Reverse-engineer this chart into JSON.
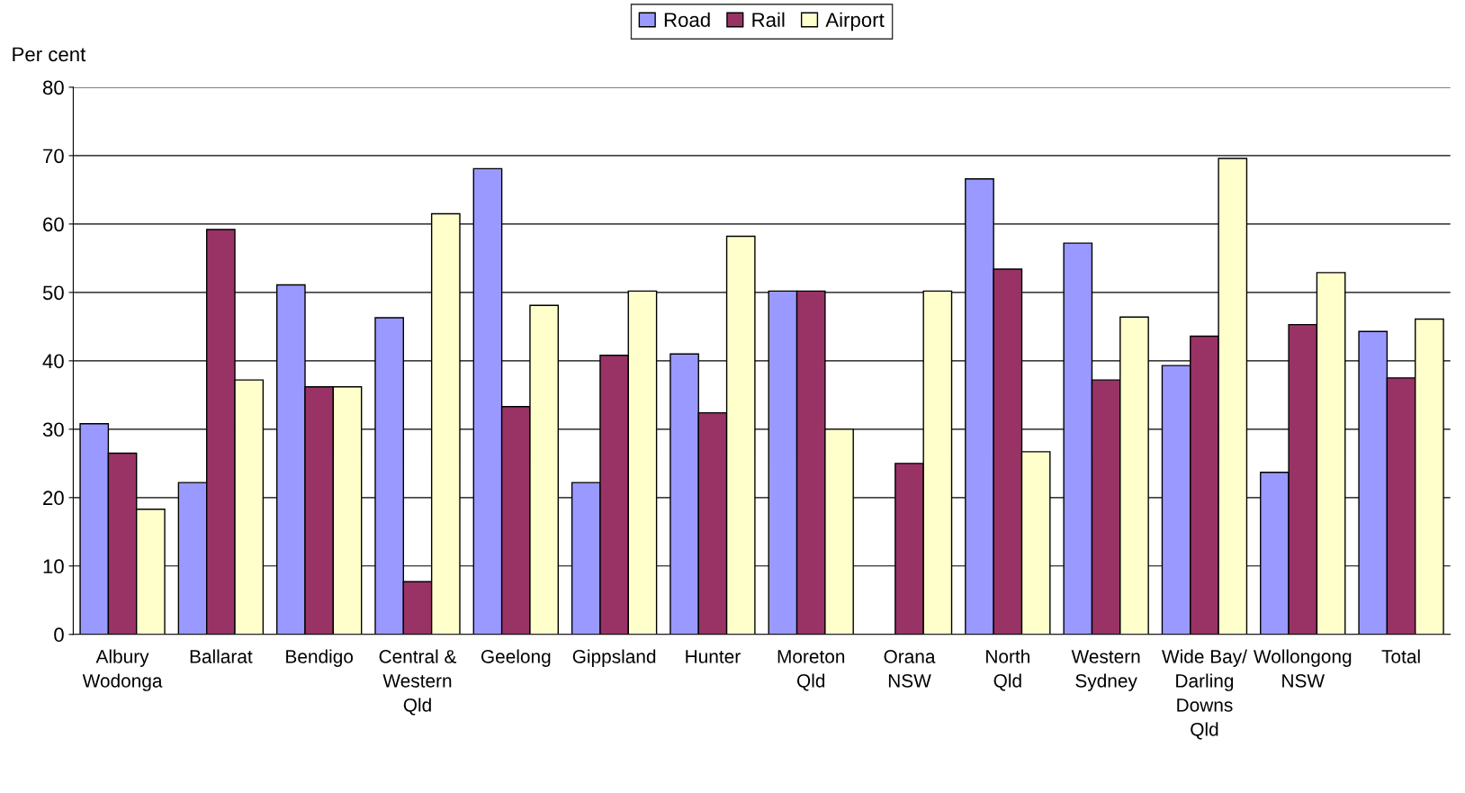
{
  "chart_data": {
    "type": "bar",
    "ylabel": "Per cent",
    "categories": [
      "Albury\nWodonga",
      "Ballarat",
      "Bendigo",
      "Central &\nWestern\nQld",
      "Geelong",
      "Gippsland",
      "Hunter",
      "Moreton\nQld",
      "Orana\nNSW",
      "North\nQld",
      "Western\nSydney",
      "Wide Bay/\nDarling\nDowns\nQld",
      "Wollongong\nNSW",
      "Total"
    ],
    "series": [
      {
        "name": "Road",
        "color": "#9999ff",
        "values": [
          30.8,
          22.2,
          51.1,
          46.3,
          68.1,
          22.2,
          41.0,
          50.2,
          null,
          66.6,
          57.2,
          39.3,
          23.7,
          44.3
        ]
      },
      {
        "name": "Rail",
        "color": "#993366",
        "values": [
          26.5,
          59.2,
          36.2,
          7.7,
          33.3,
          40.8,
          32.4,
          50.2,
          25.0,
          53.4,
          37.2,
          43.6,
          45.3,
          37.5
        ]
      },
      {
        "name": "Airport",
        "color": "#ffffcc",
        "values": [
          18.3,
          37.2,
          36.2,
          61.5,
          48.1,
          50.2,
          58.2,
          30.0,
          50.2,
          26.7,
          46.4,
          69.6,
          52.9,
          46.1
        ]
      }
    ],
    "ylim": [
      0,
      80
    ],
    "yticks": [
      0,
      10,
      20,
      30,
      40,
      50,
      60,
      70,
      80
    ],
    "grid": "y",
    "legend": "top"
  }
}
